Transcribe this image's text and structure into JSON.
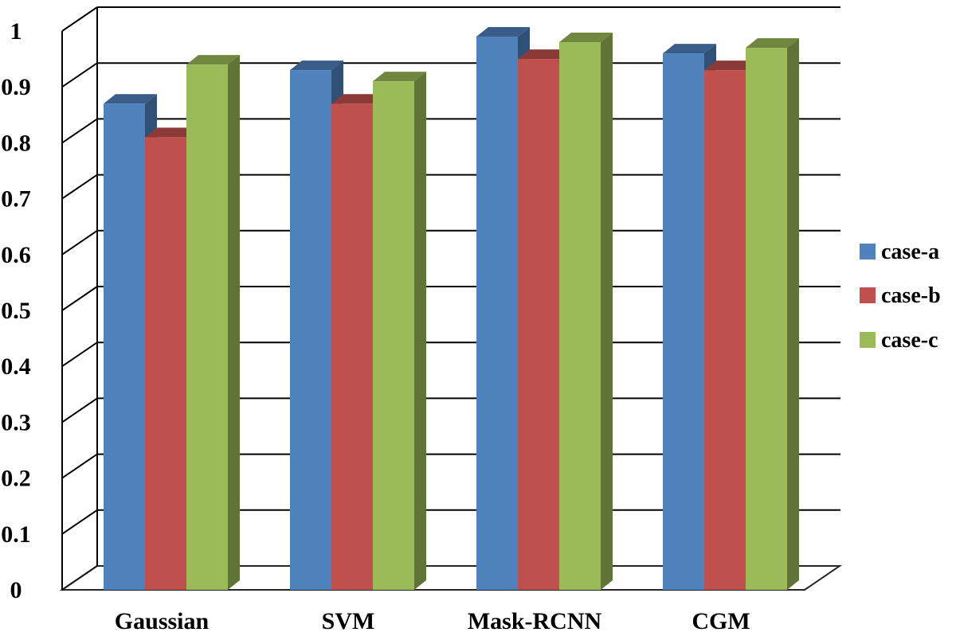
{
  "chart_data": {
    "type": "bar",
    "title": "",
    "xlabel": "",
    "ylabel": "",
    "categories": [
      "Gaussian",
      "SVM",
      "Mask-RCNN",
      "CGM"
    ],
    "series": [
      {
        "name": "case-a",
        "color": "#4F81BD",
        "values": [
          0.87,
          0.93,
          0.99,
          0.96
        ]
      },
      {
        "name": "case-b",
        "color": "#C0504D",
        "values": [
          0.81,
          0.87,
          0.95,
          0.93
        ]
      },
      {
        "name": "case-c",
        "color": "#9BBB59",
        "values": [
          0.94,
          0.91,
          0.98,
          0.97
        ]
      }
    ],
    "yticks": [
      "0",
      "0.1",
      "0.2",
      "0.3",
      "0.4",
      "0.5",
      "0.6",
      "0.7",
      "0.8",
      "0.9",
      "1"
    ],
    "ylim": [
      0,
      1
    ],
    "grid": true,
    "three_d": true,
    "legend_position": "right"
  }
}
